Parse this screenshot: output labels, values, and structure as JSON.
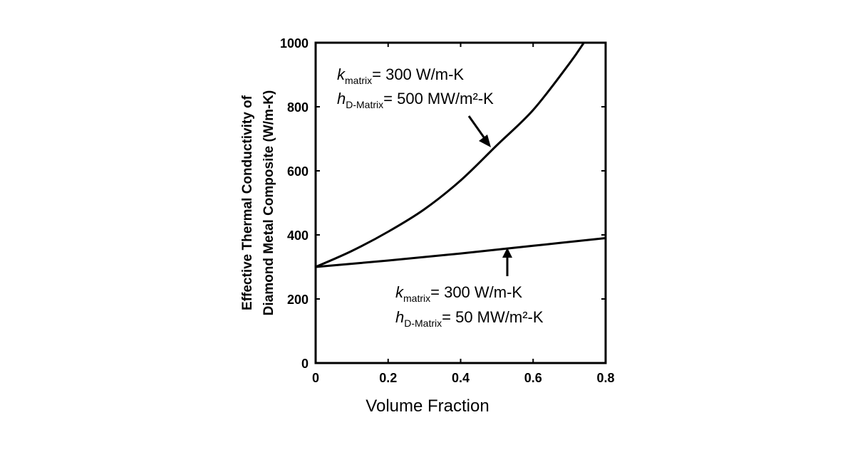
{
  "chart_data": {
    "type": "line",
    "title": "",
    "xlabel": "Volume Fraction",
    "ylabel_lines": [
      "Effective Thermal Conductivity of",
      "Diamond Metal Composite (W/m-K)"
    ],
    "xlim": [
      0,
      0.8
    ],
    "ylim": [
      0,
      1000
    ],
    "xticks": [
      0,
      0.2,
      0.4,
      0.6,
      0.8
    ],
    "xtick_labels": [
      "0",
      "0.2",
      "0.4",
      "0.6",
      "0.8"
    ],
    "yticks": [
      0,
      200,
      400,
      600,
      800,
      1000
    ],
    "ytick_labels": [
      "0",
      "200",
      "400",
      "600",
      "800",
      "1000"
    ],
    "grid": false,
    "series": [
      {
        "color": "#000000",
        "x": [
          0,
          0.1,
          0.2,
          0.3,
          0.4,
          0.5,
          0.6,
          0.7,
          0.74
        ],
        "y": [
          300,
          350,
          410,
          480,
          570,
          680,
          790,
          935,
          1000
        ]
      },
      {
        "color": "#000000",
        "x": [
          0,
          0.2,
          0.4,
          0.6,
          0.8
        ],
        "y": [
          300,
          320,
          342,
          366,
          390
        ]
      }
    ],
    "annotations": [
      {
        "k_label": "k",
        "k_sub": "matrix",
        "k_value": "=  300 W/m-K",
        "h_label": "h",
        "h_sub": "D-Matrix",
        "h_value": "= 500 MW/m²-K",
        "points_to_series": 0
      },
      {
        "k_label": "k",
        "k_sub": "matrix",
        "k_value": "=  300 W/m-K",
        "h_label": "h",
        "h_sub": "D-Matrix",
        "h_value": "= 50 MW/m²-K",
        "points_to_series": 1
      }
    ]
  }
}
